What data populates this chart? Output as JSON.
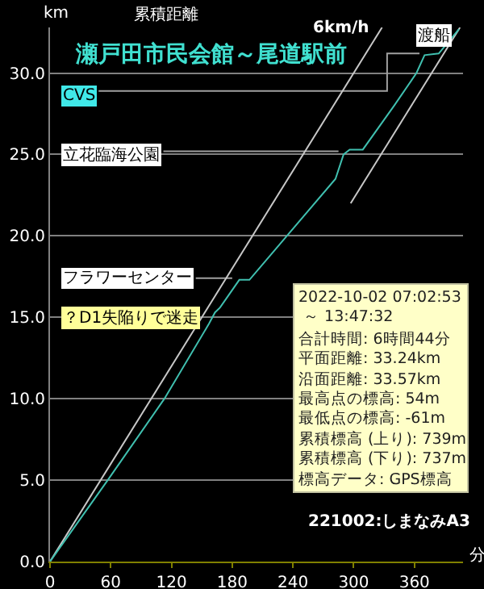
{
  "chart_data": {
    "type": "line",
    "title": "瀬戸田市民会館～尾道駅前",
    "subtitle": "累積距離",
    "ylabel": "km",
    "xlabel": "分",
    "xlim": [
      0,
      408
    ],
    "xticks": [
      0,
      60,
      120,
      180,
      240,
      300,
      360
    ],
    "ylim": [
      0,
      32.8
    ],
    "yticks": [
      {
        "value": 0,
        "label": "0.0"
      },
      {
        "value": 5,
        "label": "5.0"
      },
      {
        "value": 10,
        "label": "10.0"
      },
      {
        "value": 15,
        "label": "15.0"
      },
      {
        "value": 20,
        "label": "20.0"
      },
      {
        "value": 25,
        "label": "25.0"
      },
      {
        "value": 30,
        "label": "30.0"
      }
    ],
    "grid": "y",
    "series": [
      {
        "color": "#a0a0a0",
        "x": [
          48,
          333,
          333,
          365
        ],
        "values": [
          28.9,
          28.9,
          31.2,
          31.2
        ]
      },
      {
        "color": "#a0a0a0",
        "x": [
          112,
          285
        ],
        "values": [
          25.2,
          25.2
        ]
      },
      {
        "color": "#a0a0a0",
        "x": [
          144,
          180
        ],
        "values": [
          17.4,
          17.4
        ]
      },
      {
        "color": "#c8c8c8",
        "x": [
          0,
          328
        ],
        "values": [
          0,
          32.8
        ]
      },
      {
        "color": "#c8c8c8",
        "x": [
          297,
          405
        ],
        "values": [
          22.0,
          32.8
        ]
      },
      {
        "color": "#40c0b0",
        "x": [
          0,
          57,
          113,
          157,
          163,
          168,
          187,
          197,
          234,
          282,
          290,
          296,
          309,
          340,
          362,
          370,
          384,
          404
        ],
        "values": [
          0,
          5,
          10,
          14.6,
          15.3,
          15.6,
          17.3,
          17.3,
          20,
          23.5,
          25,
          25.3,
          25.3,
          28,
          30,
          31.1,
          31.2,
          32.7
        ]
      }
    ],
    "annotations": [
      "6km/h",
      "渡船",
      "CVS",
      "立花臨海公園",
      "フラワーセンター",
      "？D1失陥りで迷走",
      "2022-10-02 07:02:53",
      " ～ 13:47:32",
      "合計時間: 6時間44分",
      "平面距離: 33.24km",
      "沿面距離: 33.57km",
      "最高点の標高: 54m",
      "最低点の標高: -61m",
      "累積標高 (上り): 739m",
      "累積標高 (下り): 737m",
      "標高データ: GPS標高",
      "221002:しまなみA3"
    ]
  }
}
